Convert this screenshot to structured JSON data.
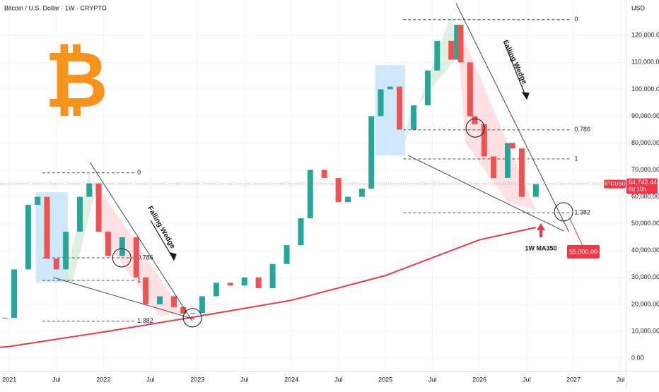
{
  "chart_data": {
    "type": "candlestick",
    "title": "Bitcoin / U.S. Dollar · 1W · CRYPTO",
    "logo": "₿",
    "currency": "USD",
    "xlim": [
      2020.9,
      2027.556
    ],
    "ylim": [
      -4730,
      133210
    ],
    "xticks": [
      2021,
      {
        "value": 2021.5,
        "label": "Jul"
      },
      2022,
      {
        "value": 2022.5,
        "label": "Jul"
      },
      2023,
      {
        "value": 2023.5,
        "label": "Jul"
      },
      2024,
      {
        "value": 2024.5,
        "label": "Jul"
      },
      2025,
      {
        "value": 2025.5,
        "label": "Jul"
      },
      2026,
      {
        "value": 2026.5,
        "label": "Jul"
      },
      2027,
      {
        "value": 2027.5,
        "label": "Jul"
      }
    ],
    "yticks": [
      {
        "value": 0,
        "label": "0.00"
      },
      {
        "value": 10000,
        "label": "10,000.00"
      },
      {
        "value": 20000,
        "label": "20,000.00"
      },
      {
        "value": 30000,
        "label": "30,000.00"
      },
      {
        "value": 40000,
        "label": "40,000.00"
      },
      {
        "value": 50000,
        "label": "50,000.00"
      },
      {
        "value": 60000,
        "label": "60,000.00"
      },
      {
        "value": 70000,
        "label": "70,000.00"
      },
      {
        "value": 80000,
        "label": "80,000.00"
      },
      {
        "value": 90000,
        "label": "90,000.00"
      },
      {
        "value": 100000,
        "label": "100,000.00"
      },
      {
        "value": 110000,
        "label": "110,000.00"
      },
      {
        "value": 120000,
        "label": "120,000.00"
      }
    ],
    "grid": true,
    "x": [
      2020.95,
      2021.05,
      2021.2,
      2021.3,
      2021.4,
      2021.5,
      2021.6,
      2021.75,
      2021.85,
      2021.95,
      2022.05,
      2022.2,
      2022.35,
      2022.45,
      2022.6,
      2022.75,
      2022.85,
      2022.95,
      2023.05,
      2023.2,
      2023.35,
      2023.5,
      2023.65,
      2023.8,
      2023.95,
      2024.1,
      2024.2,
      2024.35,
      2024.5,
      2024.6,
      2024.75,
      2024.85,
      2024.95,
      2025.05,
      2025.15,
      2025.3,
      2025.45,
      2025.55,
      2025.7,
      2025.76,
      2025.8,
      2025.9,
      2025.95,
      2026.05,
      2026.15,
      2026.3,
      2026.35,
      2026.45,
      2026.6
    ],
    "series": [
      {
        "name": "BTCUSD",
        "up_color": "#26a69a",
        "down_color": "#ef5350",
        "values": [
          15000,
          33000,
          57000,
          60000,
          37000,
          33000,
          47000,
          60000,
          65000,
          47000,
          38000,
          45000,
          30000,
          20000,
          23000,
          19000,
          16500,
          16800,
          23000,
          28000,
          27000,
          30000,
          26000,
          35000,
          42000,
          52000,
          70000,
          67000,
          58000,
          60000,
          63000,
          90000,
          100000,
          101000,
          85000,
          94000,
          107000,
          118000,
          111000,
          124000,
          110000,
          90000,
          87000,
          75000,
          67000,
          80000,
          78000,
          60000,
          64742.44
        ]
      }
    ],
    "ma": {
      "name": "1W MA350",
      "color": "#f23645",
      "x": [
        2020.9,
        2021.0,
        2022.0,
        2023.0,
        2024.0,
        2025.0,
        2026.0,
        2026.6
      ],
      "values": [
        4000,
        4300,
        9700,
        15500,
        21500,
        30700,
        44000,
        48600
      ]
    },
    "last_price": {
      "value": 64742.44,
      "label": "64,742.44"
    },
    "countdown": "6d 10h",
    "target_label": "55,000.00",
    "fibs": [
      {
        "x": [
          2021.35,
          2022.33
        ],
        "levels": [
          {
            "ratio": 0,
            "price": 68900
          },
          {
            "ratio": 0.786,
            "price": 37300
          },
          {
            "ratio": 1,
            "price": 28900
          },
          {
            "ratio": 1.382,
            "price": 13700
          }
        ]
      },
      {
        "x": [
          2025.19,
          2026.98
        ],
        "levels": [
          {
            "ratio": 0,
            "price": 125900
          },
          {
            "ratio": 0.786,
            "price": 84900
          },
          {
            "ratio": 1,
            "price": 74100
          },
          {
            "ratio": 1.382,
            "price": 54100
          }
        ]
      }
    ],
    "wedges": [
      {
        "label": "Falling Wedge",
        "upper": [
          [
            2021.857,
            72800
          ],
          [
            2022.947,
            13700
          ]
        ],
        "lower": [
          [
            2021.466,
            30000
          ],
          [
            2022.97,
            14450
          ]
        ]
      },
      {
        "label": "Falling Wedge",
        "upper": [
          [
            2025.752,
            131900
          ],
          [
            2026.95,
            47000
          ]
        ],
        "lower": [
          [
            2025.24,
            75400
          ],
          [
            2026.895,
            47300
          ]
        ]
      }
    ],
    "boxes": [
      [
        2021.28,
        2021.62,
        61700,
        28100
      ],
      [
        2024.89,
        2025.21,
        109000,
        75400
      ]
    ],
    "zones": [
      {
        "color": "#c8e6c9",
        "points": [
          [
            2021.6,
            30000
          ],
          [
            2021.85,
            69000
          ],
          [
            2021.9,
            60000
          ],
          [
            2021.66,
            27000
          ]
        ]
      },
      {
        "color": "#ffcdd2",
        "points": [
          [
            2021.88,
            67000
          ],
          [
            2022.85,
            17000
          ],
          [
            2022.6,
            15500
          ],
          [
            2022.0,
            45000
          ]
        ]
      },
      {
        "color": "#c8e6c9",
        "points": [
          [
            2025.2,
            80000
          ],
          [
            2025.7,
            128000
          ],
          [
            2025.76,
            112000
          ],
          [
            2025.25,
            90000
          ]
        ]
      },
      {
        "color": "#ffcdd2",
        "points": [
          [
            2025.76,
            125000
          ],
          [
            2026.6,
            55000
          ],
          [
            2026.3,
            58000
          ],
          [
            2025.85,
            80000
          ]
        ]
      }
    ],
    "circles": [
      [
        2022.195,
        37300
      ],
      [
        2022.947,
        15000
      ],
      [
        2025.955,
        85600
      ],
      [
        2026.895,
        54400
      ]
    ]
  }
}
